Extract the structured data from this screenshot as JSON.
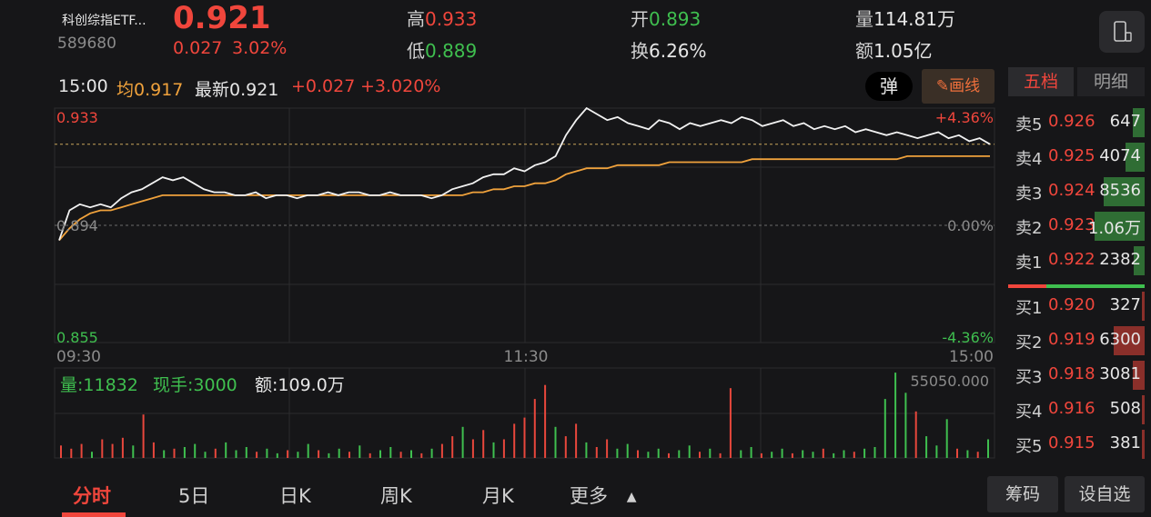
{
  "header": {
    "name": "科创综指ETF...",
    "code": "589680",
    "price": "0.921",
    "change": "0.027",
    "change_pct": "3.02%",
    "high_label": "高",
    "high": "0.933",
    "low_label": "低",
    "low": "0.889",
    "open_label": "开",
    "open": "0.893",
    "turnover_label": "换",
    "turnover": "6.26%",
    "volume_label": "量",
    "volume": "114.81万",
    "amount_label": "额",
    "amount": "1.05亿"
  },
  "info_bar": {
    "time": "15:00",
    "avg": "均0.917",
    "latest": "最新0.921",
    "change": "+0.027",
    "change_pct": "+3.020%",
    "tan_label": "弹",
    "draw_label": "画线"
  },
  "orderbook": {
    "tab_active": "五档",
    "tab_other": "明细",
    "asks": [
      {
        "label": "卖5",
        "price": "0.926",
        "vol": "647",
        "bar": 0.09
      },
      {
        "label": "卖4",
        "price": "0.925",
        "vol": "4074",
        "bar": 0.14
      },
      {
        "label": "卖3",
        "price": "0.924",
        "vol": "8536",
        "bar": 0.3
      },
      {
        "label": "卖2",
        "price": "0.923",
        "vol": "1.06万",
        "bar": 0.37
      },
      {
        "label": "卖1",
        "price": "0.922",
        "vol": "2382",
        "bar": 0.08
      }
    ],
    "bids": [
      {
        "label": "买1",
        "price": "0.920",
        "vol": "327",
        "bar": 0.01
      },
      {
        "label": "买2",
        "price": "0.919",
        "vol": "6300",
        "bar": 0.23
      },
      {
        "label": "买3",
        "price": "0.918",
        "vol": "3081",
        "bar": 0.09
      },
      {
        "label": "买4",
        "price": "0.916",
        "vol": "508",
        "bar": 0.02
      },
      {
        "label": "买5",
        "price": "0.915",
        "vol": "381",
        "bar": 0.01
      }
    ]
  },
  "bottom_tabs": {
    "t1": "分时",
    "t2": "5日",
    "t3": "日K",
    "t4": "周K",
    "t5": "月K",
    "t6": "更多",
    "chips": "筹码",
    "watch": "设自选"
  },
  "chart_data": {
    "type": "line",
    "price_axis": {
      "top": "0.933",
      "mid": "0.894",
      "bottom": "0.855",
      "ylim": [
        0.855,
        0.933
      ]
    },
    "pct_axis": {
      "top": "+4.36%",
      "mid": "0.00%",
      "bottom": "-4.36%"
    },
    "time_axis": {
      "start": "09:30",
      "mid": "11:30",
      "end": "15:00"
    },
    "reference_price": 0.894,
    "latest_price": 0.921,
    "price_series": [
      0.889,
      0.899,
      0.901,
      0.9,
      0.901,
      0.9,
      0.903,
      0.905,
      0.906,
      0.908,
      0.91,
      0.909,
      0.91,
      0.908,
      0.906,
      0.905,
      0.905,
      0.904,
      0.904,
      0.905,
      0.903,
      0.904,
      0.904,
      0.903,
      0.904,
      0.904,
      0.905,
      0.904,
      0.905,
      0.905,
      0.904,
      0.904,
      0.905,
      0.904,
      0.904,
      0.904,
      0.903,
      0.904,
      0.906,
      0.907,
      0.908,
      0.91,
      0.911,
      0.911,
      0.913,
      0.912,
      0.914,
      0.915,
      0.917,
      0.924,
      0.929,
      0.933,
      0.931,
      0.929,
      0.93,
      0.928,
      0.927,
      0.926,
      0.929,
      0.928,
      0.926,
      0.928,
      0.927,
      0.928,
      0.929,
      0.928,
      0.93,
      0.929,
      0.927,
      0.928,
      0.929,
      0.927,
      0.928,
      0.926,
      0.927,
      0.926,
      0.927,
      0.925,
      0.926,
      0.925,
      0.924,
      0.925,
      0.924,
      0.923,
      0.924,
      0.925,
      0.923,
      0.924,
      0.922,
      0.923,
      0.921
    ],
    "avg_series": [
      0.889,
      0.893,
      0.896,
      0.898,
      0.899,
      0.899,
      0.9,
      0.901,
      0.902,
      0.903,
      0.904,
      0.904,
      0.904,
      0.904,
      0.904,
      0.904,
      0.904,
      0.904,
      0.904,
      0.904,
      0.904,
      0.904,
      0.904,
      0.904,
      0.904,
      0.904,
      0.904,
      0.904,
      0.904,
      0.904,
      0.904,
      0.904,
      0.904,
      0.904,
      0.904,
      0.904,
      0.904,
      0.904,
      0.904,
      0.904,
      0.905,
      0.905,
      0.906,
      0.906,
      0.907,
      0.907,
      0.908,
      0.908,
      0.909,
      0.911,
      0.912,
      0.913,
      0.913,
      0.913,
      0.914,
      0.914,
      0.914,
      0.914,
      0.914,
      0.915,
      0.915,
      0.915,
      0.915,
      0.915,
      0.915,
      0.915,
      0.915,
      0.916,
      0.916,
      0.916,
      0.916,
      0.916,
      0.916,
      0.916,
      0.916,
      0.916,
      0.916,
      0.916,
      0.916,
      0.916,
      0.916,
      0.916,
      0.917,
      0.917,
      0.917,
      0.917,
      0.917,
      0.917,
      0.917,
      0.917,
      0.917
    ],
    "volume_label": "量:11832",
    "hand_label": "现手:3000",
    "amount_label": "额:109.0万",
    "volume_max_label": "55050.000",
    "volume_max": 55050,
    "volumes": [
      {
        "v": 8000,
        "c": "red"
      },
      {
        "v": 6000,
        "c": "red"
      },
      {
        "v": 9000,
        "c": "red"
      },
      {
        "v": 4000,
        "c": "green"
      },
      {
        "v": 12000,
        "c": "red"
      },
      {
        "v": 9000,
        "c": "red"
      },
      {
        "v": 13000,
        "c": "red"
      },
      {
        "v": 8000,
        "c": "green"
      },
      {
        "v": 28000,
        "c": "red"
      },
      {
        "v": 10000,
        "c": "red"
      },
      {
        "v": 5000,
        "c": "green"
      },
      {
        "v": 6000,
        "c": "red"
      },
      {
        "v": 7000,
        "c": "green"
      },
      {
        "v": 9000,
        "c": "green"
      },
      {
        "v": 4000,
        "c": "green"
      },
      {
        "v": 6000,
        "c": "red"
      },
      {
        "v": 10000,
        "c": "green"
      },
      {
        "v": 5000,
        "c": "green"
      },
      {
        "v": 7000,
        "c": "green"
      },
      {
        "v": 4000,
        "c": "red"
      },
      {
        "v": 6000,
        "c": "green"
      },
      {
        "v": 3000,
        "c": "green"
      },
      {
        "v": 5000,
        "c": "red"
      },
      {
        "v": 4000,
        "c": "green"
      },
      {
        "v": 9000,
        "c": "green"
      },
      {
        "v": 5000,
        "c": "red"
      },
      {
        "v": 3000,
        "c": "green"
      },
      {
        "v": 6000,
        "c": "green"
      },
      {
        "v": 4000,
        "c": "red"
      },
      {
        "v": 8000,
        "c": "green"
      },
      {
        "v": 3000,
        "c": "red"
      },
      {
        "v": 5000,
        "c": "green"
      },
      {
        "v": 7000,
        "c": "green"
      },
      {
        "v": 4000,
        "c": "red"
      },
      {
        "v": 5000,
        "c": "green"
      },
      {
        "v": 3000,
        "c": "red"
      },
      {
        "v": 6000,
        "c": "green"
      },
      {
        "v": 9000,
        "c": "red"
      },
      {
        "v": 14000,
        "c": "red"
      },
      {
        "v": 20000,
        "c": "green"
      },
      {
        "v": 12000,
        "c": "red"
      },
      {
        "v": 18000,
        "c": "red"
      },
      {
        "v": 10000,
        "c": "green"
      },
      {
        "v": 12000,
        "c": "red"
      },
      {
        "v": 22000,
        "c": "red"
      },
      {
        "v": 26000,
        "c": "red"
      },
      {
        "v": 38000,
        "c": "red"
      },
      {
        "v": 47000,
        "c": "red"
      },
      {
        "v": 20000,
        "c": "green"
      },
      {
        "v": 14000,
        "c": "red"
      },
      {
        "v": 22000,
        "c": "red"
      },
      {
        "v": 10000,
        "c": "green"
      },
      {
        "v": 7000,
        "c": "red"
      },
      {
        "v": 12000,
        "c": "red"
      },
      {
        "v": 6000,
        "c": "green"
      },
      {
        "v": 9000,
        "c": "green"
      },
      {
        "v": 5000,
        "c": "red"
      },
      {
        "v": 4000,
        "c": "green"
      },
      {
        "v": 6000,
        "c": "green"
      },
      {
        "v": 3000,
        "c": "red"
      },
      {
        "v": 5000,
        "c": "green"
      },
      {
        "v": 8000,
        "c": "green"
      },
      {
        "v": 4000,
        "c": "red"
      },
      {
        "v": 6000,
        "c": "green"
      },
      {
        "v": 3000,
        "c": "red"
      },
      {
        "v": 45000,
        "c": "red"
      },
      {
        "v": 5000,
        "c": "green"
      },
      {
        "v": 7000,
        "c": "green"
      },
      {
        "v": 3000,
        "c": "red"
      },
      {
        "v": 4000,
        "c": "green"
      },
      {
        "v": 6000,
        "c": "green"
      },
      {
        "v": 3000,
        "c": "red"
      },
      {
        "v": 5000,
        "c": "green"
      },
      {
        "v": 4000,
        "c": "green"
      },
      {
        "v": 6000,
        "c": "red"
      },
      {
        "v": 3000,
        "c": "green"
      },
      {
        "v": 5000,
        "c": "green"
      },
      {
        "v": 4000,
        "c": "red"
      },
      {
        "v": 6000,
        "c": "green"
      },
      {
        "v": 7000,
        "c": "green"
      },
      {
        "v": 38000,
        "c": "green"
      },
      {
        "v": 55000,
        "c": "green"
      },
      {
        "v": 42000,
        "c": "green"
      },
      {
        "v": 30000,
        "c": "red"
      },
      {
        "v": 14000,
        "c": "green"
      },
      {
        "v": 8000,
        "c": "green"
      },
      {
        "v": 25000,
        "c": "green"
      },
      {
        "v": 6000,
        "c": "red"
      },
      {
        "v": 5000,
        "c": "green"
      },
      {
        "v": 4000,
        "c": "red"
      },
      {
        "v": 12000,
        "c": "green"
      }
    ]
  }
}
